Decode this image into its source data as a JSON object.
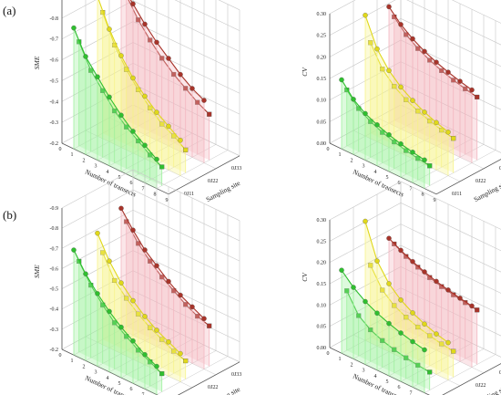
{
  "panel_labels": [
    "(a)",
    "(b)"
  ],
  "colors": {
    "green": "#2fbf2f",
    "yellow": "#e0d81a",
    "red": "#a8342a",
    "grid": "#c8c8c8",
    "axis": "#555555"
  },
  "chart_data": [
    {
      "type": "line3d",
      "zlabel": "SME",
      "xlabel": "Number of transects",
      "ylabel": "Sampling site",
      "x_ticks": [
        "0",
        "1",
        "2",
        "3",
        "4",
        "5",
        "6",
        "7",
        "8",
        "9"
      ],
      "y_ticks": [
        "0J11",
        "0J22",
        "0J33"
      ],
      "z_ticks": [
        "-0.2",
        "-0.3",
        "-0.4",
        "-0.5",
        "-0.6",
        "-0.7",
        "-0.8",
        "-0.9"
      ],
      "zlim": [
        -0.2,
        -0.9
      ],
      "x": [
        1,
        2,
        3,
        4,
        5,
        6,
        7,
        8
      ],
      "series": [
        {
          "color": "green",
          "site": 0,
          "values": [
            -0.78,
            -0.67,
            -0.6,
            -0.53,
            -0.47,
            -0.42,
            -0.38,
            -0.34
          ]
        },
        {
          "color": "green",
          "site": 0.22,
          "values": [
            -0.7,
            -0.59,
            -0.52,
            -0.45,
            -0.4,
            -0.36,
            -0.32,
            -0.29
          ]
        },
        {
          "color": "yellow",
          "site": 1,
          "values": [
            -0.87,
            -0.74,
            -0.64,
            -0.56,
            -0.5,
            -0.45,
            -0.41,
            -0.37
          ]
        },
        {
          "color": "yellow",
          "site": 1.22,
          "values": [
            -0.78,
            -0.65,
            -0.56,
            -0.49,
            -0.43,
            -0.38,
            -0.35,
            -0.31
          ]
        },
        {
          "color": "red",
          "site": 2,
          "values": [
            -0.87,
            -0.8,
            -0.73,
            -0.67,
            -0.62,
            -0.57,
            -0.53,
            -0.5
          ]
        },
        {
          "color": "red",
          "site": 2.22,
          "values": [
            -0.8,
            -0.71,
            -0.64,
            -0.58,
            -0.53,
            -0.49,
            -0.45,
            -0.42
          ]
        }
      ]
    },
    {
      "type": "line3d",
      "zlabel": "CV",
      "xlabel": "Number of transects",
      "ylabel": "Sampling site",
      "x_ticks": [
        "0",
        "1",
        "2",
        "3",
        "4",
        "5",
        "6",
        "7",
        "8",
        "9"
      ],
      "y_ticks": [
        "0J11",
        "0J22",
        "0J33"
      ],
      "z_ticks": [
        "0.00",
        "0.05",
        "0.10",
        "0.15",
        "0.20",
        "0.25",
        "0.30"
      ],
      "zlim": [
        0,
        0.3
      ],
      "x": [
        1,
        2,
        3,
        4,
        5,
        6,
        7,
        8
      ],
      "series": [
        {
          "color": "green",
          "site": 0,
          "values": [
            0.16,
            0.128,
            0.108,
            0.095,
            0.085,
            0.077,
            0.071,
            0.066
          ]
        },
        {
          "color": "green",
          "site": 0.22,
          "values": [
            0.13,
            0.1,
            0.083,
            0.071,
            0.062,
            0.055,
            0.05,
            0.046
          ]
        },
        {
          "color": "yellow",
          "site": 1,
          "values": [
            0.28,
            0.215,
            0.178,
            0.153,
            0.135,
            0.121,
            0.11,
            0.101
          ]
        },
        {
          "color": "yellow",
          "site": 1.22,
          "values": [
            0.21,
            0.162,
            0.135,
            0.117,
            0.104,
            0.094,
            0.086,
            0.08
          ]
        },
        {
          "color": "red",
          "site": 2,
          "values": [
            0.27,
            0.242,
            0.222,
            0.206,
            0.194,
            0.184,
            0.176,
            0.169
          ]
        },
        {
          "color": "red",
          "site": 2.22,
          "values": [
            0.24,
            0.212,
            0.193,
            0.179,
            0.168,
            0.159,
            0.152,
            0.146
          ]
        }
      ]
    },
    {
      "type": "line3d",
      "zlabel": "SME",
      "xlabel": "Number of transects",
      "ylabel": "Sampling site",
      "x_ticks": [
        "0",
        "1",
        "2",
        "3",
        "4",
        "5",
        "6",
        "7",
        "8",
        "9"
      ],
      "y_ticks": [
        "0J11",
        "0J22",
        "0J33"
      ],
      "z_ticks": [
        "-0.2",
        "-0.3",
        "-0.4",
        "-0.5",
        "-0.6",
        "-0.7",
        "-0.8",
        "-0.9"
      ],
      "zlim": [
        -0.2,
        -0.9
      ],
      "x": [
        1,
        2,
        3,
        4,
        5,
        6,
        7,
        8
      ],
      "series": [
        {
          "color": "green",
          "site": 0,
          "values": [
            -0.72,
            -0.63,
            -0.56,
            -0.5,
            -0.45,
            -0.41,
            -0.37,
            -0.34
          ]
        },
        {
          "color": "green",
          "site": 0.22,
          "values": [
            -0.65,
            -0.56,
            -0.49,
            -0.43,
            -0.39,
            -0.35,
            -0.32,
            -0.29
          ]
        },
        {
          "color": "yellow",
          "site": 1,
          "values": [
            -0.74,
            -0.63,
            -0.55,
            -0.49,
            -0.44,
            -0.4,
            -0.37,
            -0.34
          ]
        },
        {
          "color": "yellow",
          "site": 1.22,
          "values": [
            -0.63,
            -0.52,
            -0.46,
            -0.41,
            -0.37,
            -0.34,
            -0.31,
            -0.29
          ]
        },
        {
          "color": "red",
          "site": 2,
          "values": [
            -0.8,
            -0.72,
            -0.65,
            -0.6,
            -0.55,
            -0.51,
            -0.48,
            -0.45
          ]
        },
        {
          "color": "red",
          "site": 2.22,
          "values": [
            -0.72,
            -0.64,
            -0.58,
            -0.53,
            -0.49,
            -0.45,
            -0.42,
            -0.4
          ]
        }
      ]
    },
    {
      "type": "line3d",
      "zlabel": "CV",
      "xlabel": "Number of transects",
      "ylabel": "Sampling site",
      "x_ticks": [
        "0",
        "1",
        "2",
        "3",
        "4",
        "5",
        "6",
        "7",
        "8",
        "9"
      ],
      "y_ticks": [
        "0J11",
        "0J22",
        "0J33"
      ],
      "z_ticks": [
        "0.00",
        "0.05",
        "0.10",
        "0.15",
        "0.20",
        "0.25",
        "0.30"
      ],
      "zlim": [
        0,
        0.3
      ],
      "x": [
        1,
        2,
        3,
        4,
        5,
        6,
        7,
        8
      ],
      "series": [
        {
          "color": "green",
          "site": 0,
          "values": [
            0.195,
            0.168,
            0.148,
            0.134,
            0.123,
            0.114,
            0.107,
            0.101
          ]
        },
        {
          "color": "green",
          "site": 0.22,
          "values": [
            0.14,
            0.095,
            0.075,
            0.063,
            0.055,
            0.049,
            0.045,
            0.042
          ]
        },
        {
          "color": "yellow",
          "site": 1,
          "values": [
            0.28,
            0.2,
            0.16,
            0.135,
            0.118,
            0.105,
            0.095,
            0.088
          ]
        },
        {
          "color": "yellow",
          "site": 1.22,
          "values": [
            0.17,
            0.125,
            0.102,
            0.088,
            0.078,
            0.071,
            0.065,
            0.061
          ]
        },
        {
          "color": "red",
          "site": 2,
          "values": [
            0.21,
            0.195,
            0.182,
            0.171,
            0.162,
            0.155,
            0.149,
            0.144
          ]
        },
        {
          "color": "red",
          "site": 2.22,
          "values": [
            0.19,
            0.174,
            0.162,
            0.151,
            0.143,
            0.137,
            0.132,
            0.128
          ]
        }
      ]
    }
  ]
}
